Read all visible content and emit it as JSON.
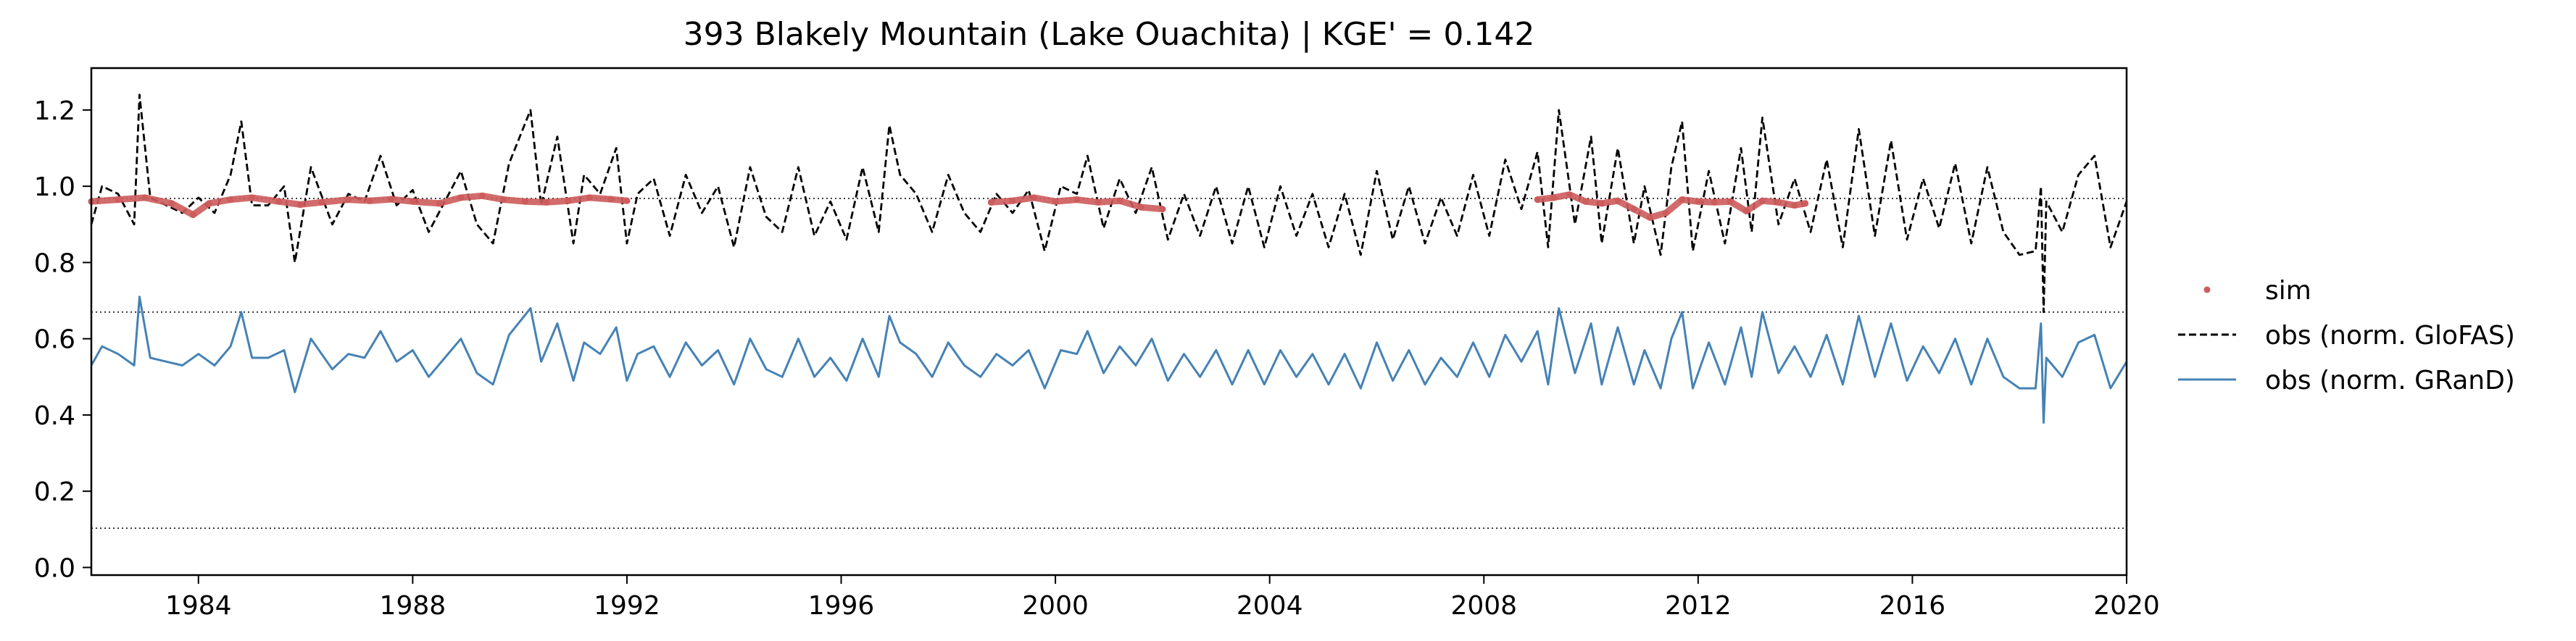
{
  "chart_data": {
    "type": "line",
    "title": "393  Blakely Mountain (Lake Ouachita) | KGE' = 0.142",
    "xlabel": "",
    "ylabel": "",
    "xlim": [
      1982.0,
      2020.0
    ],
    "ylim": [
      -0.02,
      1.31
    ],
    "x_ticks": [
      1984,
      1988,
      1992,
      1996,
      2000,
      2004,
      2008,
      2012,
      2016,
      2020
    ],
    "y_ticks": [
      0.0,
      0.2,
      0.4,
      0.6,
      0.8,
      1.0,
      1.2
    ],
    "x_tick_labels": [
      "1984",
      "1988",
      "1992",
      "1996",
      "2000",
      "2004",
      "2008",
      "2012",
      "2016",
      "2020"
    ],
    "y_tick_labels": [
      "0.0",
      "0.2",
      "0.4",
      "0.6",
      "0.8",
      "1.0",
      "1.2"
    ],
    "grid": false,
    "reference_lines": [
      0.968,
      0.67,
      0.103
    ],
    "legend_position": "outside-right",
    "series": [
      {
        "name": "sim",
        "style": "points",
        "color": "#cd5c5c",
        "segments": [
          {
            "x": [
              1982.0,
              1982.5,
              1983.0,
              1983.5,
              1983.9,
              1984.2,
              1984.6,
              1985.0,
              1985.5,
              1985.9,
              1986.3,
              1986.8,
              1987.2,
              1987.6,
              1988.0,
              1988.5,
              1988.9,
              1989.3,
              1989.7,
              1990.1,
              1990.5,
              1990.9,
              1991.3,
              1991.7,
              1992.0
            ],
            "y": [
              0.96,
              0.965,
              0.97,
              0.955,
              0.925,
              0.955,
              0.965,
              0.97,
              0.96,
              0.952,
              0.958,
              0.965,
              0.962,
              0.966,
              0.96,
              0.955,
              0.97,
              0.975,
              0.965,
              0.96,
              0.958,
              0.962,
              0.97,
              0.966,
              0.962
            ]
          },
          {
            "x": [
              1998.8,
              1999.2,
              1999.6,
              2000.0,
              2000.4,
              2000.8,
              2001.2,
              2001.6,
              2002.0
            ],
            "y": [
              0.958,
              0.962,
              0.97,
              0.96,
              0.965,
              0.958,
              0.962,
              0.945,
              0.94
            ]
          },
          {
            "x": [
              2009.0,
              2009.3,
              2009.6,
              2009.9,
              2010.2,
              2010.5,
              2010.8,
              2011.1,
              2011.4,
              2011.7,
              2012.0,
              2012.3,
              2012.6,
              2012.9,
              2013.2,
              2013.5,
              2013.8,
              2014.0
            ],
            "y": [
              0.965,
              0.97,
              0.978,
              0.96,
              0.955,
              0.962,
              0.94,
              0.918,
              0.93,
              0.965,
              0.96,
              0.958,
              0.96,
              0.935,
              0.962,
              0.958,
              0.95,
              0.955
            ]
          }
        ]
      },
      {
        "name": "obs (norm. GloFAS)",
        "style": "dashed",
        "color": "#000000",
        "x": [
          1982.0,
          1982.2,
          1982.5,
          1982.8,
          1982.9,
          1983.1,
          1983.4,
          1983.7,
          1984.0,
          1984.3,
          1984.6,
          1984.8,
          1985.0,
          1985.3,
          1985.6,
          1985.8,
          1986.1,
          1986.5,
          1986.8,
          1987.1,
          1987.4,
          1987.7,
          1988.0,
          1988.3,
          1988.6,
          1988.9,
          1989.2,
          1989.5,
          1989.8,
          1990.2,
          1990.4,
          1990.7,
          1991.0,
          1991.2,
          1991.5,
          1991.8,
          1992.0,
          1992.2,
          1992.5,
          1992.8,
          1993.1,
          1993.4,
          1993.7,
          1994.0,
          1994.3,
          1994.6,
          1994.9,
          1995.2,
          1995.5,
          1995.8,
          1996.1,
          1996.4,
          1996.7,
          1996.9,
          1997.1,
          1997.4,
          1997.7,
          1998.0,
          1998.3,
          1998.6,
          1998.9,
          1999.2,
          1999.5,
          1999.8,
          2000.1,
          2000.4,
          2000.6,
          2000.9,
          2001.2,
          2001.5,
          2001.8,
          2002.1,
          2002.4,
          2002.7,
          2003.0,
          2003.3,
          2003.6,
          2003.9,
          2004.2,
          2004.5,
          2004.8,
          2005.1,
          2005.4,
          2005.7,
          2006.0,
          2006.3,
          2006.6,
          2006.9,
          2007.2,
          2007.5,
          2007.8,
          2008.1,
          2008.4,
          2008.7,
          2009.0,
          2009.2,
          2009.4,
          2009.7,
          2010.0,
          2010.2,
          2010.5,
          2010.8,
          2011.0,
          2011.3,
          2011.5,
          2011.7,
          2011.9,
          2012.2,
          2012.5,
          2012.8,
          2013.0,
          2013.2,
          2013.5,
          2013.8,
          2014.1,
          2014.4,
          2014.7,
          2015.0,
          2015.3,
          2015.6,
          2015.9,
          2016.2,
          2016.5,
          2016.8,
          2017.1,
          2017.4,
          2017.7,
          2018.0,
          2018.3,
          2018.4,
          2018.45,
          2018.5,
          2018.8,
          2019.1,
          2019.4,
          2019.7,
          2020.0
        ],
        "y": [
          0.9,
          1.0,
          0.98,
          0.9,
          1.24,
          0.97,
          0.95,
          0.93,
          0.97,
          0.93,
          1.03,
          1.17,
          0.95,
          0.95,
          1.0,
          0.8,
          1.05,
          0.9,
          0.98,
          0.96,
          1.08,
          0.95,
          0.99,
          0.88,
          0.96,
          1.04,
          0.9,
          0.85,
          1.06,
          1.2,
          0.95,
          1.13,
          0.85,
          1.03,
          0.98,
          1.1,
          0.85,
          0.98,
          1.02,
          0.87,
          1.03,
          0.93,
          1.0,
          0.84,
          1.05,
          0.92,
          0.88,
          1.05,
          0.87,
          0.96,
          0.86,
          1.05,
          0.88,
          1.16,
          1.03,
          0.98,
          0.88,
          1.03,
          0.93,
          0.88,
          0.98,
          0.93,
          0.99,
          0.83,
          1.0,
          0.98,
          1.08,
          0.89,
          1.02,
          0.93,
          1.05,
          0.86,
          0.98,
          0.87,
          1.0,
          0.85,
          1.0,
          0.84,
          1.0,
          0.87,
          0.98,
          0.84,
          0.98,
          0.82,
          1.04,
          0.86,
          1.0,
          0.85,
          0.97,
          0.87,
          1.03,
          0.87,
          1.07,
          0.94,
          1.09,
          0.84,
          1.2,
          0.9,
          1.13,
          0.85,
          1.1,
          0.85,
          1.0,
          0.82,
          1.05,
          1.17,
          0.83,
          1.04,
          0.85,
          1.1,
          0.88,
          1.18,
          0.9,
          1.02,
          0.88,
          1.07,
          0.84,
          1.15,
          0.87,
          1.12,
          0.86,
          1.02,
          0.89,
          1.06,
          0.85,
          1.05,
          0.88,
          0.82,
          0.83,
          1.0,
          0.67,
          0.96,
          0.88,
          1.03,
          1.08,
          0.84,
          0.96
        ]
      },
      {
        "name": "obs (norm. GRanD)",
        "style": "solid",
        "color": "#4682b4",
        "x": [
          1982.0,
          1982.2,
          1982.5,
          1982.8,
          1982.9,
          1983.1,
          1983.4,
          1983.7,
          1984.0,
          1984.3,
          1984.6,
          1984.8,
          1985.0,
          1985.3,
          1985.6,
          1985.8,
          1986.1,
          1986.5,
          1986.8,
          1987.1,
          1987.4,
          1987.7,
          1988.0,
          1988.3,
          1988.6,
          1988.9,
          1989.2,
          1989.5,
          1989.8,
          1990.2,
          1990.4,
          1990.7,
          1991.0,
          1991.2,
          1991.5,
          1991.8,
          1992.0,
          1992.2,
          1992.5,
          1992.8,
          1993.1,
          1993.4,
          1993.7,
          1994.0,
          1994.3,
          1994.6,
          1994.9,
          1995.2,
          1995.5,
          1995.8,
          1996.1,
          1996.4,
          1996.7,
          1996.9,
          1997.1,
          1997.4,
          1997.7,
          1998.0,
          1998.3,
          1998.6,
          1998.9,
          1999.2,
          1999.5,
          1999.8,
          2000.1,
          2000.4,
          2000.6,
          2000.9,
          2001.2,
          2001.5,
          2001.8,
          2002.1,
          2002.4,
          2002.7,
          2003.0,
          2003.3,
          2003.6,
          2003.9,
          2004.2,
          2004.5,
          2004.8,
          2005.1,
          2005.4,
          2005.7,
          2006.0,
          2006.3,
          2006.6,
          2006.9,
          2007.2,
          2007.5,
          2007.8,
          2008.1,
          2008.4,
          2008.7,
          2009.0,
          2009.2,
          2009.4,
          2009.7,
          2010.0,
          2010.2,
          2010.5,
          2010.8,
          2011.0,
          2011.3,
          2011.5,
          2011.7,
          2011.9,
          2012.2,
          2012.5,
          2012.8,
          2013.0,
          2013.2,
          2013.5,
          2013.8,
          2014.1,
          2014.4,
          2014.7,
          2015.0,
          2015.3,
          2015.6,
          2015.9,
          2016.2,
          2016.5,
          2016.8,
          2017.1,
          2017.4,
          2017.7,
          2018.0,
          2018.3,
          2018.4,
          2018.45,
          2018.5,
          2018.8,
          2019.1,
          2019.4,
          2019.7,
          2020.0
        ],
        "y": [
          0.53,
          0.58,
          0.56,
          0.53,
          0.71,
          0.55,
          0.54,
          0.53,
          0.56,
          0.53,
          0.58,
          0.67,
          0.55,
          0.55,
          0.57,
          0.46,
          0.6,
          0.52,
          0.56,
          0.55,
          0.62,
          0.54,
          0.57,
          0.5,
          0.55,
          0.6,
          0.51,
          0.48,
          0.61,
          0.68,
          0.54,
          0.64,
          0.49,
          0.59,
          0.56,
          0.63,
          0.49,
          0.56,
          0.58,
          0.5,
          0.59,
          0.53,
          0.57,
          0.48,
          0.6,
          0.52,
          0.5,
          0.6,
          0.5,
          0.55,
          0.49,
          0.6,
          0.5,
          0.66,
          0.59,
          0.56,
          0.5,
          0.59,
          0.53,
          0.5,
          0.56,
          0.53,
          0.57,
          0.47,
          0.57,
          0.56,
          0.62,
          0.51,
          0.58,
          0.53,
          0.6,
          0.49,
          0.56,
          0.5,
          0.57,
          0.48,
          0.57,
          0.48,
          0.57,
          0.5,
          0.56,
          0.48,
          0.56,
          0.47,
          0.59,
          0.49,
          0.57,
          0.48,
          0.55,
          0.5,
          0.59,
          0.5,
          0.61,
          0.54,
          0.62,
          0.48,
          0.68,
          0.51,
          0.64,
          0.48,
          0.63,
          0.48,
          0.57,
          0.47,
          0.6,
          0.67,
          0.47,
          0.59,
          0.48,
          0.63,
          0.5,
          0.67,
          0.51,
          0.58,
          0.5,
          0.61,
          0.48,
          0.66,
          0.5,
          0.64,
          0.49,
          0.58,
          0.51,
          0.6,
          0.48,
          0.6,
          0.5,
          0.47,
          0.47,
          0.64,
          0.38,
          0.55,
          0.5,
          0.59,
          0.61,
          0.47,
          0.54
        ]
      }
    ]
  }
}
